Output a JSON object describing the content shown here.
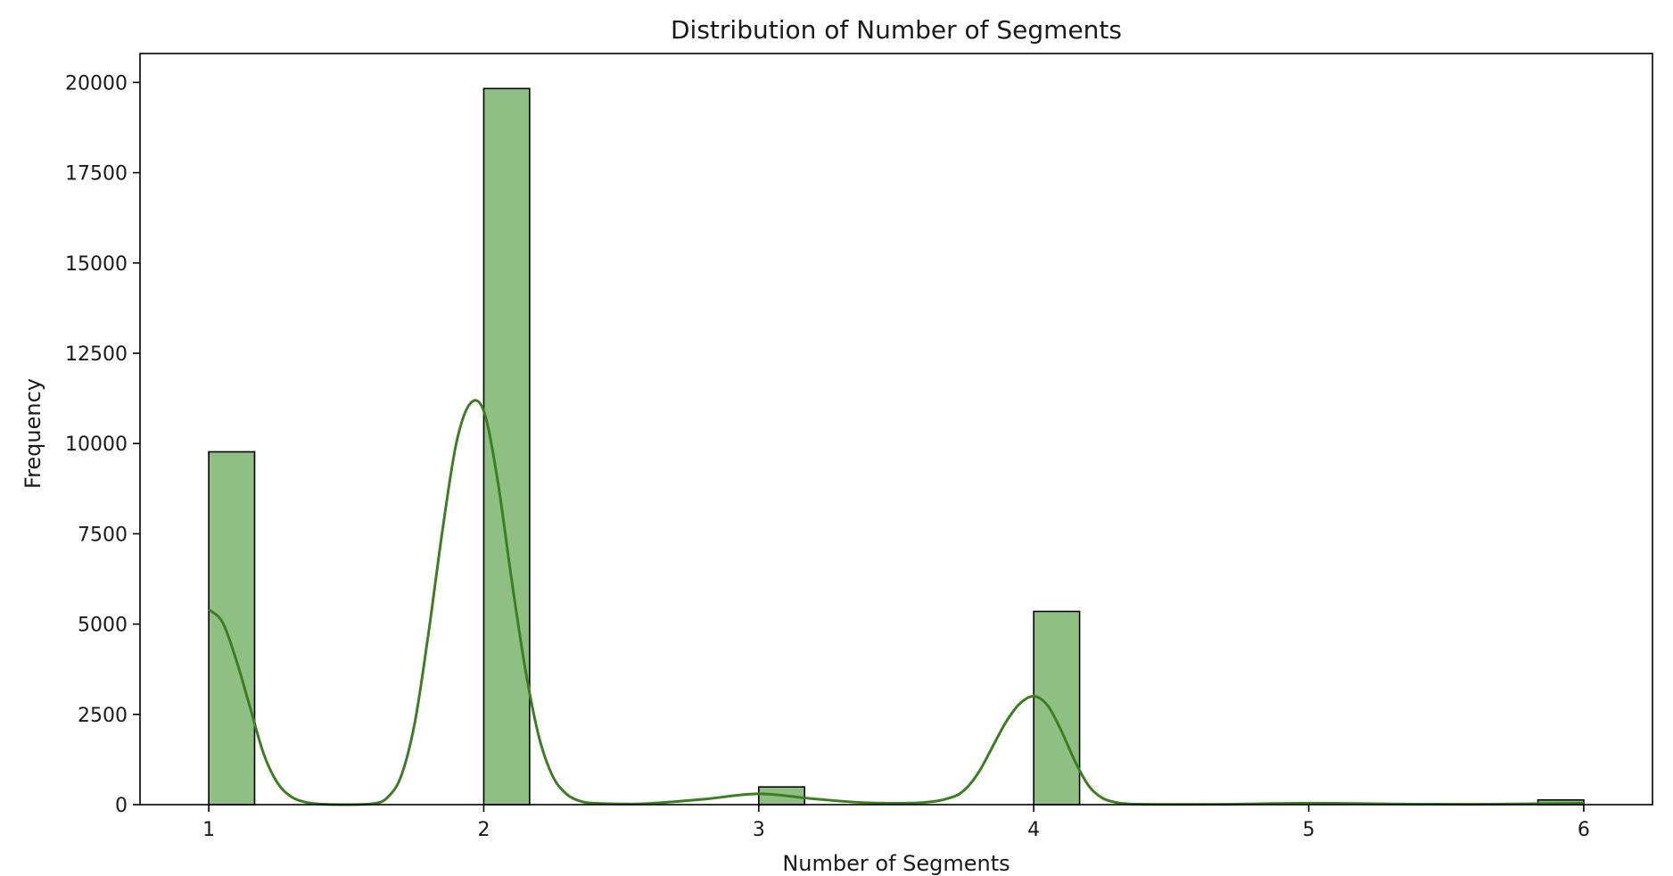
{
  "chart_data": {
    "type": "bar",
    "title": "Distribution of Number of Segments",
    "xlabel": "Number of Segments",
    "ylabel": "Frequency",
    "xlim": [
      0.75,
      6.25
    ],
    "ylim": [
      0,
      20800
    ],
    "xticks": [
      1,
      2,
      3,
      4,
      5,
      6
    ],
    "yticks": [
      0,
      2500,
      5000,
      7500,
      10000,
      12500,
      15000,
      17500,
      20000
    ],
    "bin_width": 0.1667,
    "bins": [
      {
        "start": 1.0,
        "value": 9770
      },
      {
        "start": 2.0,
        "value": 19830
      },
      {
        "start": 3.0,
        "value": 490
      },
      {
        "start": 4.0,
        "value": 5350
      },
      {
        "start": 5.8333,
        "value": 130
      }
    ],
    "kde": {
      "x": [
        1.0,
        1.05,
        1.1,
        1.15,
        1.2,
        1.25,
        1.3,
        1.35,
        1.4,
        1.5,
        1.6,
        1.65,
        1.7,
        1.75,
        1.8,
        1.85,
        1.9,
        1.95,
        2.0,
        2.05,
        2.1,
        2.15,
        2.2,
        2.25,
        2.3,
        2.35,
        2.4,
        2.5,
        2.6,
        2.8,
        3.0,
        3.2,
        3.4,
        3.6,
        3.7,
        3.75,
        3.8,
        3.85,
        3.9,
        3.95,
        4.0,
        4.05,
        4.1,
        4.15,
        4.2,
        4.25,
        4.3,
        4.35,
        4.4,
        4.5,
        4.7,
        5.0,
        5.3,
        5.6,
        5.9,
        6.0
      ],
      "y": [
        5400,
        5050,
        4000,
        2700,
        1400,
        600,
        220,
        70,
        20,
        0,
        30,
        200,
        800,
        2300,
        4800,
        7600,
        10000,
        11100,
        10900,
        9000,
        6300,
        3800,
        1900,
        800,
        300,
        100,
        40,
        20,
        30,
        150,
        300,
        160,
        50,
        60,
        200,
        420,
        900,
        1600,
        2300,
        2800,
        3000,
        2750,
        2050,
        1200,
        520,
        180,
        60,
        20,
        10,
        5,
        10,
        40,
        20,
        10,
        30,
        40
      ]
    },
    "colors": {
      "bar_fill": "#8fbf82",
      "bar_edge": "#000000",
      "kde_line": "#3c7f22",
      "axes": "#000000"
    },
    "grid": false,
    "legend": false
  }
}
